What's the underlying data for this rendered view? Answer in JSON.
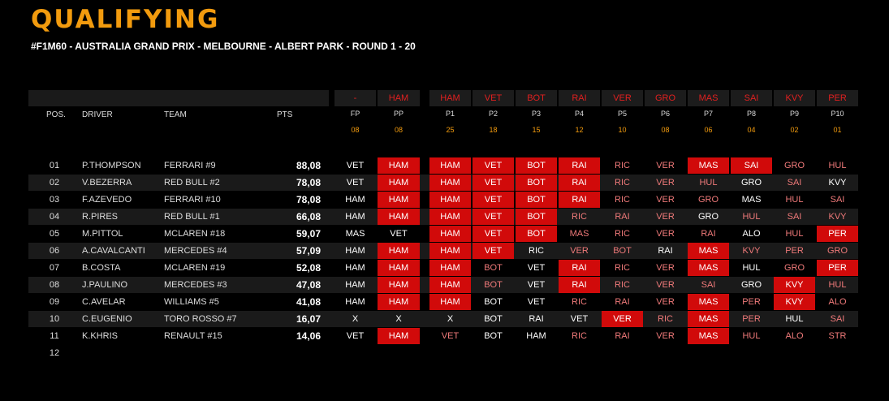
{
  "title": "QUALIFYING",
  "subtitle": "#F1M60 - AUSTRALIA GRAND PRIX - MELBOURNE - ALBERT PARK - ROUND 1 - 20",
  "columns": {
    "pos": "POS.",
    "driver": "DRIVER",
    "team": "TEAM",
    "pts": "PTS"
  },
  "colors": {
    "accent": "#f29b0e",
    "highlight": "#d10a0a",
    "miss": "#f07a7a"
  },
  "pick_columns": [
    {
      "top": "-",
      "label": "FP",
      "points": "08"
    },
    {
      "top": "HAM",
      "label": "PP",
      "points": "08"
    },
    {
      "top": "HAM",
      "label": "P1",
      "points": "25"
    },
    {
      "top": "VET",
      "label": "P2",
      "points": "18"
    },
    {
      "top": "BOT",
      "label": "P3",
      "points": "15"
    },
    {
      "top": "RAI",
      "label": "P4",
      "points": "12"
    },
    {
      "top": "VER",
      "label": "P5",
      "points": "10"
    },
    {
      "top": "GRO",
      "label": "P6",
      "points": "08"
    },
    {
      "top": "MAS",
      "label": "P7",
      "points": "06"
    },
    {
      "top": "SAI",
      "label": "P8",
      "points": "04"
    },
    {
      "top": "KVY",
      "label": "P9",
      "points": "02"
    },
    {
      "top": "PER",
      "label": "P10",
      "points": "01"
    }
  ],
  "rows": [
    {
      "pos": "01",
      "driver": "P.THOMPSON",
      "team": "FERRARI #9",
      "pts": "88,08",
      "picks": [
        [
          "VET",
          "w"
        ],
        [
          "HAM",
          "r"
        ],
        [
          "HAM",
          "r"
        ],
        [
          "VET",
          "r"
        ],
        [
          "BOT",
          "r"
        ],
        [
          "RAI",
          "r"
        ],
        [
          "RIC",
          "p"
        ],
        [
          "VER",
          "p"
        ],
        [
          "MAS",
          "r"
        ],
        [
          "SAI",
          "r"
        ],
        [
          "GRO",
          "p"
        ],
        [
          "HUL",
          "p"
        ]
      ]
    },
    {
      "pos": "02",
      "driver": "V.BEZERRA",
      "team": "RED BULL #2",
      "pts": "78,08",
      "picks": [
        [
          "VET",
          "w"
        ],
        [
          "HAM",
          "r"
        ],
        [
          "HAM",
          "r"
        ],
        [
          "VET",
          "r"
        ],
        [
          "BOT",
          "r"
        ],
        [
          "RAI",
          "r"
        ],
        [
          "RIC",
          "p"
        ],
        [
          "VER",
          "p"
        ],
        [
          "HUL",
          "p"
        ],
        [
          "GRO",
          "w"
        ],
        [
          "SAI",
          "p"
        ],
        [
          "KVY",
          "w"
        ]
      ]
    },
    {
      "pos": "03",
      "driver": "F.AZEVEDO",
      "team": "FERRARI #10",
      "pts": "78,08",
      "picks": [
        [
          "HAM",
          "w"
        ],
        [
          "HAM",
          "r"
        ],
        [
          "HAM",
          "r"
        ],
        [
          "VET",
          "r"
        ],
        [
          "BOT",
          "r"
        ],
        [
          "RAI",
          "r"
        ],
        [
          "RIC",
          "p"
        ],
        [
          "VER",
          "p"
        ],
        [
          "GRO",
          "p"
        ],
        [
          "MAS",
          "w"
        ],
        [
          "HUL",
          "p"
        ],
        [
          "SAI",
          "p"
        ]
      ]
    },
    {
      "pos": "04",
      "driver": "R.PIRES",
      "team": "RED BULL #1",
      "pts": "66,08",
      "picks": [
        [
          "HAM",
          "w"
        ],
        [
          "HAM",
          "r"
        ],
        [
          "HAM",
          "r"
        ],
        [
          "VET",
          "r"
        ],
        [
          "BOT",
          "r"
        ],
        [
          "RIC",
          "p"
        ],
        [
          "RAI",
          "p"
        ],
        [
          "VER",
          "p"
        ],
        [
          "GRO",
          "w"
        ],
        [
          "HUL",
          "p"
        ],
        [
          "SAI",
          "p"
        ],
        [
          "KVY",
          "p"
        ]
      ]
    },
    {
      "pos": "05",
      "driver": "M.PITTOL",
      "team": "MCLAREN #18",
      "pts": "59,07",
      "picks": [
        [
          "MAS",
          "w"
        ],
        [
          "VET",
          "w"
        ],
        [
          "HAM",
          "r"
        ],
        [
          "VET",
          "r"
        ],
        [
          "BOT",
          "r"
        ],
        [
          "MAS",
          "p"
        ],
        [
          "RIC",
          "p"
        ],
        [
          "VER",
          "p"
        ],
        [
          "RAI",
          "p"
        ],
        [
          "ALO",
          "w"
        ],
        [
          "HUL",
          "p"
        ],
        [
          "PER",
          "r"
        ]
      ]
    },
    {
      "pos": "06",
      "driver": "A.CAVALCANTI",
      "team": "MERCEDES #4",
      "pts": "57,09",
      "picks": [
        [
          "HAM",
          "w"
        ],
        [
          "HAM",
          "r"
        ],
        [
          "HAM",
          "r"
        ],
        [
          "VET",
          "r"
        ],
        [
          "RIC",
          "w"
        ],
        [
          "VER",
          "p"
        ],
        [
          "BOT",
          "p"
        ],
        [
          "RAI",
          "w"
        ],
        [
          "MAS",
          "r"
        ],
        [
          "KVY",
          "p"
        ],
        [
          "PER",
          "p"
        ],
        [
          "GRO",
          "p"
        ]
      ]
    },
    {
      "pos": "07",
      "driver": "B.COSTA",
      "team": "MCLAREN #19",
      "pts": "52,08",
      "picks": [
        [
          "HAM",
          "w"
        ],
        [
          "HAM",
          "r"
        ],
        [
          "HAM",
          "r"
        ],
        [
          "BOT",
          "p"
        ],
        [
          "VET",
          "w"
        ],
        [
          "RAI",
          "r"
        ],
        [
          "RIC",
          "p"
        ],
        [
          "VER",
          "p"
        ],
        [
          "MAS",
          "r"
        ],
        [
          "HUL",
          "w"
        ],
        [
          "GRO",
          "p"
        ],
        [
          "PER",
          "r"
        ]
      ]
    },
    {
      "pos": "08",
      "driver": "J.PAULINO",
      "team": "MERCEDES #3",
      "pts": "47,08",
      "picks": [
        [
          "HAM",
          "w"
        ],
        [
          "HAM",
          "r"
        ],
        [
          "HAM",
          "r"
        ],
        [
          "BOT",
          "p"
        ],
        [
          "VET",
          "w"
        ],
        [
          "RAI",
          "r"
        ],
        [
          "RIC",
          "p"
        ],
        [
          "VER",
          "p"
        ],
        [
          "SAI",
          "p"
        ],
        [
          "GRO",
          "w"
        ],
        [
          "KVY",
          "r"
        ],
        [
          "HUL",
          "p"
        ]
      ]
    },
    {
      "pos": "09",
      "driver": "C.AVELAR",
      "team": "WILLIAMS #5",
      "pts": "41,08",
      "picks": [
        [
          "HAM",
          "w"
        ],
        [
          "HAM",
          "r"
        ],
        [
          "HAM",
          "r"
        ],
        [
          "BOT",
          "w"
        ],
        [
          "VET",
          "w"
        ],
        [
          "RIC",
          "p"
        ],
        [
          "RAI",
          "p"
        ],
        [
          "VER",
          "p"
        ],
        [
          "MAS",
          "r"
        ],
        [
          "PER",
          "p"
        ],
        [
          "KVY",
          "r"
        ],
        [
          "ALO",
          "p"
        ]
      ]
    },
    {
      "pos": "10",
      "driver": "C.EUGENIO",
      "team": "TORO ROSSO #7",
      "pts": "16,07",
      "picks": [
        [
          "X",
          "w"
        ],
        [
          "X",
          "w"
        ],
        [
          "X",
          "w"
        ],
        [
          "BOT",
          "w"
        ],
        [
          "RAI",
          "w"
        ],
        [
          "VET",
          "w"
        ],
        [
          "VER",
          "r"
        ],
        [
          "RIC",
          "p"
        ],
        [
          "MAS",
          "r"
        ],
        [
          "PER",
          "p"
        ],
        [
          "HUL",
          "w"
        ],
        [
          "SAI",
          "p"
        ]
      ]
    },
    {
      "pos": "11",
      "driver": "K.KHRIS",
      "team": "RENAULT #15",
      "pts": "14,06",
      "picks": [
        [
          "VET",
          "w"
        ],
        [
          "HAM",
          "r"
        ],
        [
          "VET",
          "p"
        ],
        [
          "BOT",
          "w"
        ],
        [
          "HAM",
          "w"
        ],
        [
          "RIC",
          "p"
        ],
        [
          "RAI",
          "p"
        ],
        [
          "VER",
          "p"
        ],
        [
          "MAS",
          "r"
        ],
        [
          "HUL",
          "p"
        ],
        [
          "ALO",
          "p"
        ],
        [
          "STR",
          "p"
        ]
      ]
    },
    {
      "pos": "12",
      "driver": "",
      "team": "",
      "pts": "",
      "picks": []
    }
  ]
}
